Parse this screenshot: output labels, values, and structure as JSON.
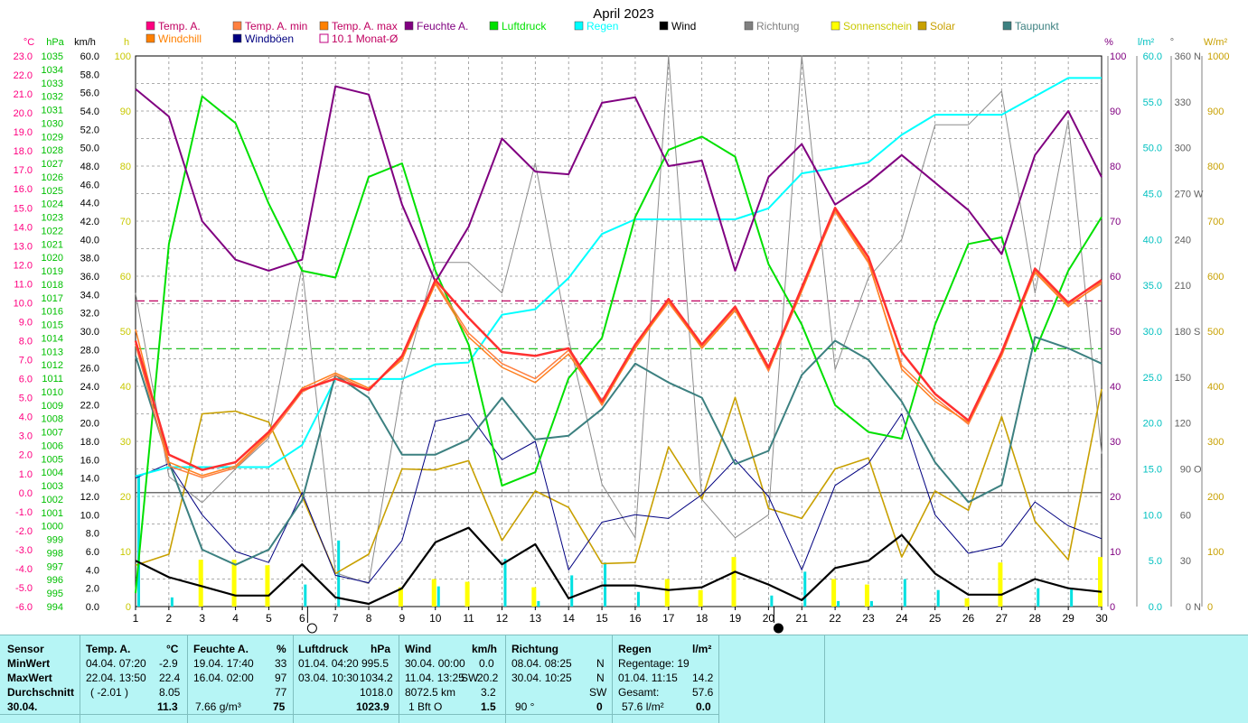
{
  "chart_data": {
    "type": "line",
    "title": "April 2023",
    "x": [
      1,
      2,
      3,
      4,
      5,
      6,
      7,
      8,
      9,
      10,
      11,
      12,
      13,
      14,
      15,
      16,
      17,
      18,
      19,
      20,
      21,
      22,
      23,
      24,
      25,
      26,
      27,
      28,
      29,
      30
    ],
    "axes": {
      "temp": {
        "label": "°C",
        "ylim": [
          -6,
          23
        ],
        "color": "#ff0080"
      },
      "pressure": {
        "label": "hPa",
        "ylim": [
          994,
          1035
        ],
        "color": "#00c000"
      },
      "wind": {
        "label": "km/h",
        "ylim": [
          0,
          60
        ],
        "color": "#000000"
      },
      "sunshine": {
        "label": "h",
        "ylim": [
          0,
          100
        ],
        "color": "#c8c800"
      },
      "humidity": {
        "label": "%",
        "ylim": [
          0,
          100
        ],
        "color": "#800080"
      },
      "rain": {
        "label": "l/m²",
        "ylim": [
          0,
          60
        ],
        "color": "#00e0e0"
      },
      "direction": {
        "label": "°",
        "ylim": [
          0,
          360
        ],
        "color": "#606060"
      },
      "solar": {
        "label": "W/m²",
        "ylim": [
          0,
          1000
        ],
        "color": "#c8a000"
      }
    },
    "temp_ticks": [
      "23.0",
      "22.0",
      "21.0",
      "20.0",
      "19.0",
      "18.0",
      "17.0",
      "16.0",
      "15.0",
      "14.0",
      "13.0",
      "12.0",
      "11.0",
      "10.0",
      "9.0",
      "8.0",
      "7.0",
      "6.0",
      "5.0",
      "4.0",
      "3.0",
      "2.0",
      "1.0",
      "0.0",
      "-1.0",
      "-2.0",
      "-3.0",
      "-4.0",
      "-5.0",
      "-6.0"
    ],
    "pressure_ticks": [
      "1035",
      "1034",
      "1033",
      "1032",
      "1031",
      "1030",
      "1029",
      "1028",
      "1027",
      "1026",
      "1025",
      "1024",
      "1023",
      "1022",
      "1021",
      "1020",
      "1019",
      "1018",
      "1017",
      "1016",
      "1015",
      "1014",
      "1013",
      "1012",
      "1011",
      "1010",
      "1009",
      "1008",
      "1007",
      "1006",
      "1005",
      "1004",
      "1003",
      "1002",
      "1001",
      "1000",
      "999",
      "998",
      "997",
      "996",
      "995",
      "994"
    ],
    "wind_ticks": [
      "60.0",
      "58.0",
      "56.0",
      "54.0",
      "52.0",
      "50.0",
      "48.0",
      "46.0",
      "44.0",
      "42.0",
      "40.0",
      "38.0",
      "36.0",
      "34.0",
      "32.0",
      "30.0",
      "28.0",
      "26.0",
      "24.0",
      "22.0",
      "20.0",
      "18.0",
      "16.0",
      "14.0",
      "12.0",
      "10.0",
      "8.0",
      "6.0",
      "4.0",
      "2.0",
      "0.0"
    ],
    "sunshine_ticks": [
      "100",
      "90",
      "80",
      "70",
      "60",
      "50",
      "40",
      "30",
      "20",
      "10",
      "0"
    ],
    "humidity_ticks": [
      "100",
      "90",
      "80",
      "70",
      "60",
      "50",
      "40",
      "30",
      "20",
      "10",
      "0"
    ],
    "rain_ticks": [
      "60.0",
      "55.0",
      "50.0",
      "45.0",
      "40.0",
      "35.0",
      "30.0",
      "25.0",
      "20.0",
      "15.0",
      "10.0",
      "5.0",
      "0.0"
    ],
    "direction_ticks": [
      "360",
      "330",
      "300",
      "270",
      "240",
      "210",
      "180",
      "150",
      "120",
      "90",
      "60",
      "30",
      "0"
    ],
    "direction_letters": [
      {
        "v": 360,
        "t": "N"
      },
      {
        "v": 270,
        "t": "W"
      },
      {
        "v": 180,
        "t": "S"
      },
      {
        "v": 90,
        "t": "O"
      },
      {
        "v": 0,
        "t": "N"
      }
    ],
    "solar_ticks": [
      "1000",
      "900",
      "800",
      "700",
      "600",
      "500",
      "400",
      "300",
      "200",
      "100",
      "0"
    ],
    "legend": [
      {
        "name": "Temp. A.",
        "color": "#ff0080",
        "kind": "fill"
      },
      {
        "name": "Windchill",
        "color": "#ff8000",
        "kind": "fill"
      },
      {
        "name": "Temp. A. min",
        "color": "#ff8040",
        "kind": "fill"
      },
      {
        "name": "Windböen",
        "color": "#000080",
        "kind": "fill"
      },
      {
        "name": "Temp. A. max",
        "color": "#ff8000",
        "kind": "fill"
      },
      {
        "name": "10.1 Monat-Ø",
        "color": "#c00080",
        "kind": "outline"
      },
      {
        "name": "Feuchte A.",
        "color": "#800080",
        "kind": "fill"
      },
      {
        "name": "Luftdruck",
        "color": "#00e000",
        "kind": "fill"
      },
      {
        "name": "Regen",
        "color": "#00ffff",
        "kind": "fill"
      },
      {
        "name": "Wind",
        "color": "#000000",
        "kind": "fill"
      },
      {
        "name": "Richtung",
        "color": "#808080",
        "kind": "fill"
      },
      {
        "name": "Sonnenschein",
        "color": "#ffff00",
        "kind": "fill"
      },
      {
        "name": "Solar",
        "color": "#c8a000",
        "kind": "fill"
      },
      {
        "name": "Taupunkt",
        "color": "#3c8080",
        "kind": "fill"
      }
    ],
    "series": [
      {
        "name": "Temp. A.",
        "axis": "temp",
        "color": "#ff3030",
        "width": 2.5,
        "values": [
          8.0,
          2.0,
          1.2,
          1.6,
          3.2,
          5.4,
          6.0,
          5.4,
          7.2,
          11.2,
          9.2,
          7.4,
          7.2,
          7.6,
          4.8,
          7.8,
          10.2,
          7.8,
          9.8,
          6.6,
          10.8,
          15.0,
          12.4,
          7.4,
          5.2,
          3.8,
          7.4,
          11.8,
          10.0,
          11.2
        ]
      },
      {
        "name": "Temp. A. max",
        "axis": "temp",
        "color": "#ff8020",
        "width": 1.5,
        "values": [
          8.6,
          1.6,
          0.9,
          1.4,
          3.1,
          5.5,
          6.3,
          5.5,
          7.0,
          11.0,
          8.2,
          6.6,
          5.8,
          7.3,
          4.7,
          7.6,
          10.1,
          7.6,
          9.6,
          6.5,
          10.6,
          14.9,
          12.2,
          6.5,
          4.8,
          3.7,
          7.3,
          11.6,
          9.8,
          11.1
        ]
      },
      {
        "name": "Temp. A. min",
        "axis": "temp",
        "color": "#ff8040",
        "width": 1.5,
        "values": [
          7.8,
          1.4,
          0.8,
          1.3,
          3.0,
          5.3,
          6.2,
          5.4,
          7.1,
          11.1,
          8.4,
          6.8,
          6.0,
          7.5,
          4.6,
          7.7,
          10.0,
          7.7,
          9.7,
          6.4,
          10.7,
          14.8,
          12.1,
          6.7,
          5.0,
          3.6,
          7.2,
          11.7,
          9.9,
          11.0
        ]
      },
      {
        "name": "Taupunkt",
        "axis": "temp",
        "color": "#3c8080",
        "width": 2,
        "values": [
          7.2,
          1.6,
          -3.0,
          -3.8,
          -3.0,
          -0.4,
          6.2,
          5.0,
          2.0,
          2.0,
          2.8,
          5.0,
          2.8,
          3.0,
          4.4,
          6.8,
          5.8,
          5.0,
          1.5,
          2.2,
          6.2,
          8.0,
          7.0,
          4.8,
          1.6,
          -0.5,
          0.4,
          8.2,
          7.6,
          6.8
        ]
      },
      {
        "name": "Luftdruck",
        "axis": "pressure",
        "color": "#00e000",
        "width": 2,
        "values": [
          995,
          1021,
          1032,
          1030,
          1024,
          1019,
          1018.5,
          1026,
          1027,
          1019,
          1013.5,
          1003,
          1004,
          1011,
          1014,
          1023,
          1028,
          1029,
          1027.5,
          1019.5,
          1015,
          1009,
          1007,
          1006.5,
          1015,
          1021,
          1021.5,
          1013,
          1019,
          1023
        ]
      },
      {
        "name": "Feuchte A.",
        "axis": "humidity",
        "color": "#800080",
        "width": 2,
        "values": [
          94,
          89,
          70,
          63,
          61,
          63,
          94.5,
          93,
          73,
          59,
          69,
          85,
          79,
          78.5,
          91.5,
          92.5,
          80,
          81,
          61,
          78,
          84,
          73,
          77,
          82,
          77,
          72,
          64,
          82,
          90,
          78
        ]
      },
      {
        "name": "Regen",
        "axis": "rain",
        "color": "#00ffff",
        "width": 2,
        "values": [
          14.2,
          15.2,
          15.2,
          15.2,
          15.2,
          17.6,
          24.8,
          24.8,
          24.8,
          26.4,
          26.6,
          31.8,
          32.4,
          35.8,
          40.6,
          42.2,
          42.2,
          42.2,
          42.2,
          43.4,
          47.2,
          47.8,
          48.4,
          51.4,
          53.6,
          53.6,
          53.6,
          55.6,
          57.6,
          57.6
        ]
      },
      {
        "name": "Richtung",
        "axis": "direction",
        "color": "#8c8c8c",
        "width": 1,
        "values": [
          205,
          85,
          68,
          90,
          110,
          222,
          22,
          15,
          145,
          225,
          225,
          205,
          290,
          175,
          80,
          45,
          360,
          70,
          45,
          60,
          360,
          155,
          215,
          240,
          315,
          315,
          337,
          205,
          318,
          100
        ]
      },
      {
        "name": "Solar",
        "axis": "solar",
        "color": "#c8a000",
        "width": 1.6,
        "values": [
          75,
          95,
          350,
          355,
          335,
          200,
          60,
          95,
          250,
          248,
          265,
          120,
          210,
          180,
          78,
          80,
          290,
          195,
          380,
          178,
          160,
          250,
          270,
          90,
          210,
          175,
          345,
          155,
          85,
          395
        ]
      },
      {
        "name": "Windböen",
        "axis": "wind",
        "color": "#000080",
        "width": 1,
        "values": [
          14.0,
          15.6,
          10.0,
          6.0,
          4.8,
          12.4,
          3.4,
          2.6,
          7.2,
          20.2,
          21.0,
          16.0,
          18.0,
          4.0,
          9.2,
          10.0,
          9.6,
          12.2,
          16.0,
          12.0,
          4.0,
          13.2,
          15.6,
          21.0,
          10.0,
          5.8,
          6.6,
          11.4,
          8.8,
          7.4
        ]
      },
      {
        "name": "Wind",
        "axis": "wind",
        "color": "#000000",
        "width": 2.2,
        "values": [
          5.0,
          3.2,
          2.2,
          1.2,
          1.2,
          4.6,
          1.0,
          0.3,
          2.0,
          7.0,
          8.6,
          4.6,
          6.8,
          0.9,
          2.3,
          2.3,
          1.8,
          2.1,
          3.8,
          2.4,
          0.7,
          4.2,
          5.0,
          7.8,
          3.6,
          1.3,
          1.3,
          3.0,
          2.0,
          1.6
        ]
      }
    ],
    "bars": [
      {
        "name": "Sonnenschein",
        "axis": "sunshine",
        "color": "#ffff00",
        "values": [
          0,
          0,
          8.5,
          8.5,
          7.5,
          0,
          0,
          0,
          3.5,
          5.0,
          4.5,
          0,
          3.5,
          0,
          0,
          0,
          5.0,
          3.0,
          9.0,
          0,
          0,
          5.0,
          4.0,
          0,
          0,
          1.5,
          8.0,
          0,
          0,
          9.0
        ]
      },
      {
        "name": "Regen",
        "axis": "rain",
        "color": "#00e0e0",
        "values": [
          14.2,
          1.0,
          0,
          0,
          0,
          2.4,
          7.2,
          0,
          0,
          2.2,
          0,
          5.2,
          0.6,
          3.4,
          4.8,
          1.6,
          0,
          0,
          0,
          1.2,
          3.8,
          0.6,
          0.6,
          3.0,
          1.8,
          0,
          0,
          2.0,
          2.0,
          0
        ]
      }
    ],
    "monthly_mean": {
      "label": "10.1 Monat-Ø",
      "temp": 10.1,
      "pressure": 1013.2
    },
    "moon_phases": [
      {
        "day": 6.3,
        "phase": "full"
      },
      {
        "day": 20.3,
        "phase": "new"
      }
    ]
  },
  "summary": {
    "rows": [
      "Sensor",
      "MinWert",
      "MaxWert",
      "Durchschnitt",
      "30.04."
    ],
    "temp": {
      "header": "Temp. A.",
      "unit": "°C",
      "min_time": "04.04.  07:20",
      "min_val": "-2.9",
      "max_time": "22.04.  13:50",
      "max_val": "22.4",
      "avg_note": "( -2.01 )",
      "avg_val": "8.05",
      "today": "11.3"
    },
    "humidity": {
      "header": "Feuchte A.",
      "unit": "%",
      "min_time": "19.04.  17:40",
      "min_val": "33",
      "max_time": "16.04.  02:00",
      "max_val": "97",
      "avg_val": "77",
      "today_note": "7.66 g/m³",
      "today": "75"
    },
    "pressure": {
      "header": "Luftdruck",
      "unit": "hPa",
      "min_time": "01.04.  04:20",
      "min_val": "995.5",
      "max_time": "03.04.  10:30",
      "max_val": "1034.2",
      "avg_val": "1018.0",
      "today": "1023.9"
    },
    "wind": {
      "header": "Wind",
      "unit": "km/h",
      "min_time": "30.04.  00:00",
      "min_val": "0.0",
      "max_time": "11.04.  13:25",
      "max_dir": "SW",
      "max_val": "20.2",
      "avg_note": "8072.5 km",
      "avg_val": "3.2",
      "today_note": "1 Bft O",
      "today": "1.5"
    },
    "direction": {
      "header": "Richtung",
      "min_time": "08.04.  08:25",
      "min_val": "N",
      "max_time": "30.04.  10:25",
      "max_val": "N",
      "avg_val": "SW",
      "today_note": "90 °",
      "today": "0"
    },
    "rain": {
      "header": "Regen",
      "unit": "l/m²",
      "line1": "Regentage: 19",
      "line2_time": "01.04.  11:15",
      "line2_val": "14.2",
      "line3_label": "Gesamt:",
      "line3_val": "57.6",
      "line4_note": "57.6 l/m²",
      "line4_val": "0.0"
    }
  }
}
